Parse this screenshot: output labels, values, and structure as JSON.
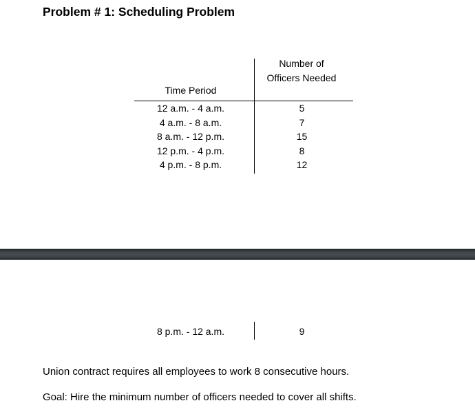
{
  "document": {
    "title": "Problem # 1: Scheduling Problem"
  },
  "table": {
    "time_header": "Time Period",
    "officers_header_line1": "Number of",
    "officers_header_line2": "Officers Needed",
    "rows": [
      {
        "time": "12 a.m. - 4 a.m.",
        "officers": "5"
      },
      {
        "time": "4 a.m. - 8 a.m.",
        "officers": "7"
      },
      {
        "time": "8 a.m. - 12 p.m.",
        "officers": "15"
      },
      {
        "time": "12 p.m. - 4 p.m.",
        "officers": "8"
      },
      {
        "time": "4 p.m. - 8 p.m.",
        "officers": "12"
      }
    ],
    "continued_row": {
      "time": "8 p.m. - 12 a.m.",
      "officers": "9"
    }
  },
  "notes": {
    "union": "Union contract requires all employees to work 8 consecutive hours.",
    "goal": "Goal: Hire the minimum number of officers needed to cover all shifts."
  },
  "colors": {
    "background": "#ffffff",
    "text": "#000000",
    "table_rule": "#000000",
    "page_divider": "#3f4448"
  }
}
